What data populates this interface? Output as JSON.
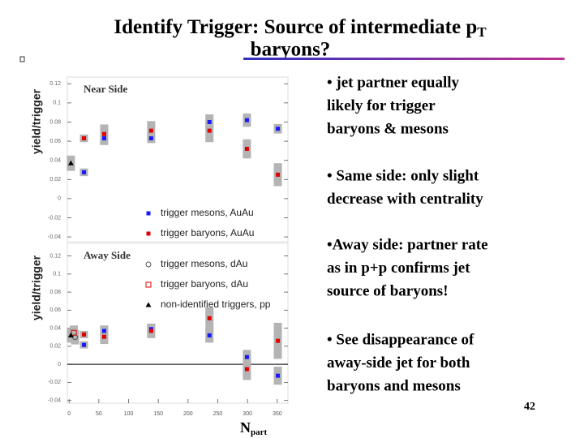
{
  "title": [
    "Identify Trigger: Source of intermediate p",
    "T",
    "baryons?"
  ],
  "bullets": [
    [
      "• jet partner equally",
      "likely for trigger",
      "baryons & mesons"
    ],
    [
      "• Same side: only slight",
      "decrease with centrality"
    ],
    [
      "•Away side: partner rate",
      "as in p+p confirms jet",
      "source of baryons!"
    ],
    [
      "• See disappearance of",
      "away-side jet for both",
      "baryons and mesons"
    ]
  ],
  "page_number": "42",
  "chart_data": [
    {
      "type": "scatter",
      "panel_label": "Near Side",
      "ylabel": "yield/trigger",
      "legend": "lower-center",
      "xlim": [
        -3,
        368
      ],
      "ylim": [
        -0.045,
        0.127
      ],
      "yticks": [
        0.12,
        0.1,
        0.08,
        0.06,
        0.04,
        0.02,
        0,
        -0.02,
        -0.04
      ],
      "series": [
        {
          "name": "trigger mesons, AuAu",
          "color": "#1a1aff",
          "marker": "square",
          "in_legend": true,
          "x": [
            25,
            59,
            138,
            236,
            299,
            351
          ],
          "values": [
            0.0275,
            0.063,
            0.063,
            0.08,
            0.082,
            0.073
          ],
          "sys": [
            0.004,
            0.007,
            0.005,
            0.008,
            0.007,
            0.005
          ]
        },
        {
          "name": "trigger baryons, AuAu",
          "color": "#e00000",
          "marker": "square",
          "in_legend": true,
          "x": [
            25,
            59,
            138,
            236,
            299,
            351
          ],
          "values": [
            0.063,
            0.0675,
            0.071,
            0.071,
            0.052,
            0.025
          ],
          "sys": [
            0.004,
            0.01,
            0.01,
            0.012,
            0.01,
            0.012
          ]
        },
        {
          "name": "non-identified triggers, pp",
          "color": "#000000",
          "marker": "triangle",
          "in_legend": false,
          "x": [
            3
          ],
          "values": [
            0.037
          ],
          "sys": [
            0.008
          ]
        }
      ]
    },
    {
      "type": "scatter",
      "panel_label": "Away Side",
      "ylabel": "yield/trigger",
      "legend": "upper-center",
      "xlim": [
        -3,
        368
      ],
      "ylim": [
        -0.043,
        0.134
      ],
      "zero_line": true,
      "yticks": [
        0.12,
        0.1,
        0.08,
        0.06,
        0.04,
        0.02,
        0,
        -0.02,
        -0.04
      ],
      "xticks": [
        0,
        50,
        100,
        150,
        200,
        250,
        300,
        350
      ],
      "xlabel": "N",
      "xlabel_sub": "part",
      "series": [
        {
          "name": "trigger mesons, dAu",
          "color": "#555555",
          "marker": "circle-open",
          "in_legend": true,
          "x": [
            10
          ],
          "values": [
            0.03
          ],
          "sys": [
            0.008
          ]
        },
        {
          "name": "trigger baryons, dAu",
          "color": "#e00000",
          "marker": "square-open",
          "in_legend": true,
          "x": [
            8
          ],
          "values": [
            0.035
          ],
          "sys": [
            0.008
          ]
        },
        {
          "name": "non-identified triggers, pp",
          "color": "#000000",
          "marker": "triangle",
          "in_legend": true,
          "x": [
            3
          ],
          "values": [
            0.032
          ],
          "sys": [
            0.008
          ]
        },
        {
          "name": "trigger mesons, AuAu",
          "color": "#1a1aff",
          "marker": "square",
          "in_legend": false,
          "x": [
            25,
            59,
            138,
            236,
            299,
            351
          ],
          "values": [
            0.0215,
            0.037,
            0.039,
            0.032,
            0.008,
            -0.0126
          ],
          "sys": [
            0.004,
            0.006,
            0.006,
            0.008,
            0.008,
            0.01
          ]
        },
        {
          "name": "trigger baryons, AuAu",
          "color": "#e00000",
          "marker": "square",
          "in_legend": false,
          "x": [
            25,
            59,
            138,
            236,
            299,
            351
          ],
          "values": [
            0.033,
            0.0305,
            0.037,
            0.051,
            -0.0054,
            0.026
          ],
          "sys": [
            0.004,
            0.008,
            0.008,
            0.012,
            0.012,
            0.02
          ]
        }
      ]
    }
  ]
}
